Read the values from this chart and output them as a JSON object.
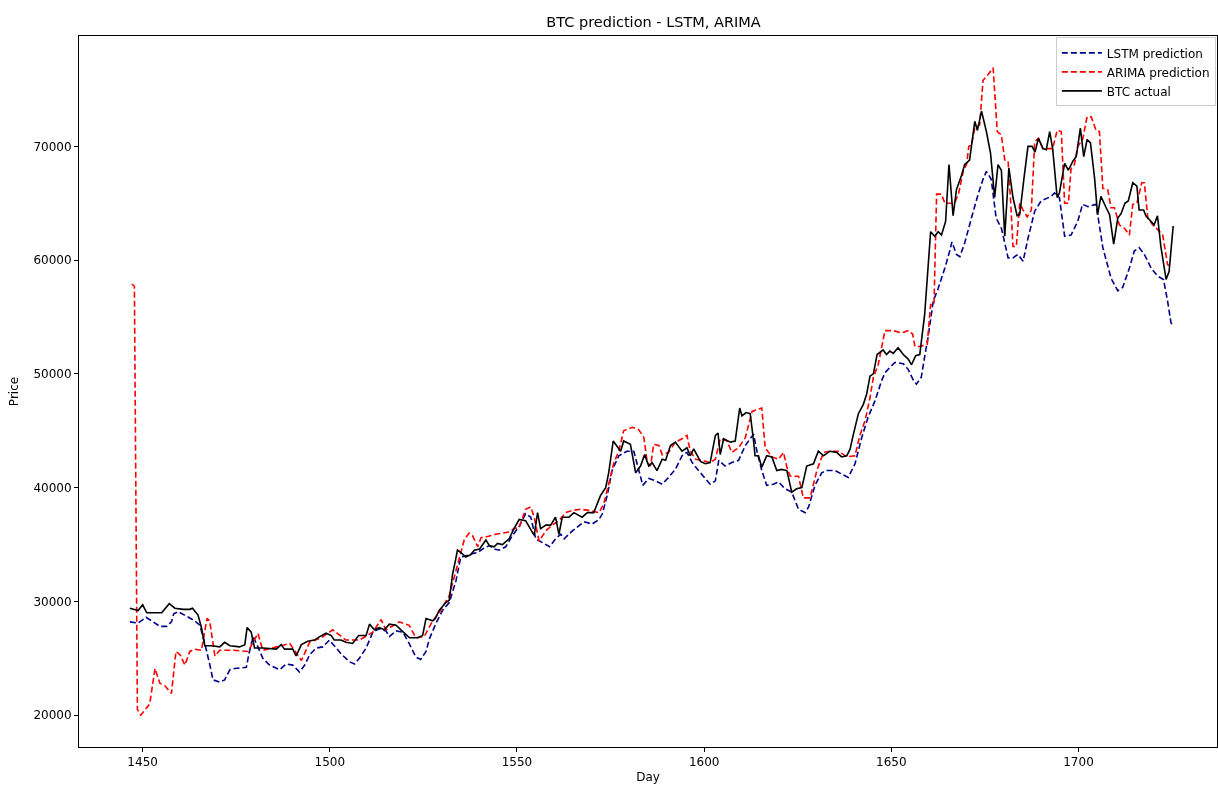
{
  "chart_data": {
    "type": "line",
    "title": "BTC prediction - LSTM, ARIMA",
    "xlabel": "Day",
    "ylabel": "Price",
    "xlim": [
      1433,
      1737
    ],
    "ylim": [
      17200,
      79700
    ],
    "xticks": [
      1450,
      1500,
      1550,
      1600,
      1650,
      1700
    ],
    "yticks": [
      20000,
      30000,
      40000,
      50000,
      60000,
      70000
    ],
    "legend": "top right",
    "series": [
      {
        "name": "LSTM prediction",
        "color": "#00008b",
        "line_style": "dashed",
        "x": [
          1446.6,
          1448.8,
          1450.9,
          1452.8,
          1454.6,
          1456.4,
          1457.7,
          1458.3,
          1459.5,
          1461.7,
          1463.9,
          1465.3,
          1466.6,
          1467.9,
          1468.8,
          1470.6,
          1471.9,
          1473.3,
          1474.6,
          1477.7,
          1478.4,
          1479.5,
          1480.4,
          1482.1,
          1483.9,
          1486.6,
          1488.4,
          1490.1,
          1491.9,
          1493.3,
          1494.6,
          1496.4,
          1498.1,
          1499.9,
          1501.2,
          1503.0,
          1505.2,
          1506.6,
          1507.9,
          1509.7,
          1511.5,
          1513.2,
          1515.0,
          1515.9,
          1517.7,
          1519.5,
          1521.2,
          1523.0,
          1524.3,
          1525.7,
          1526.6,
          1528.4,
          1530.1,
          1531.9,
          1533.7,
          1534.6,
          1535.0,
          1536.3,
          1538.1,
          1539.5,
          1540.8,
          1542.6,
          1544.0,
          1545.2,
          1547.0,
          1548.8,
          1550.6,
          1552.3,
          1553.7,
          1555.0,
          1557.2,
          1558.7,
          1560.3,
          1561.7,
          1562.6,
          1564.8,
          1567.9,
          1570.1,
          1571.9,
          1572.8,
          1574.1,
          1575.4,
          1577.2,
          1579.4,
          1581.2,
          1582.5,
          1583.6,
          1585.2,
          1587.0,
          1588.8,
          1590.5,
          1592.3,
          1594.1,
          1595.4,
          1596.8,
          1598.5,
          1600.3,
          1601.6,
          1603.0,
          1603.9,
          1605.6,
          1607.4,
          1609.2,
          1611.0,
          1612.3,
          1613.2,
          1614.1,
          1615.4,
          1616.7,
          1618.5,
          1619.9,
          1621.6,
          1623.4,
          1625.2,
          1627.0,
          1627.9,
          1629.6,
          1631.4,
          1632.7,
          1635.0,
          1636.7,
          1638.5,
          1640.3,
          1642.1,
          1643.8,
          1645.6,
          1647.4,
          1648.3,
          1650.9,
          1653.2,
          1654.5,
          1655.8,
          1656.7,
          1658.0,
          1659.0,
          1659.8,
          1661.2,
          1662.5,
          1664.3,
          1665.6,
          1666.2,
          1667.4,
          1668.3,
          1669.6,
          1671.4,
          1673.2,
          1674.5,
          1675.4,
          1676.7,
          1678.0,
          1679.4,
          1681.2,
          1682.5,
          1683.8,
          1685.2,
          1686.5,
          1688.3,
          1690.0,
          1692.7,
          1693.6,
          1694.9,
          1696.3,
          1698.0,
          1699.8,
          1701.1,
          1702.5,
          1704.7,
          1706.5,
          1708.7,
          1710.5,
          1711.8,
          1713.6,
          1714.9,
          1716.2,
          1717.6,
          1719.4,
          1721.1,
          1722.7,
          1723.8,
          1724.7,
          1725.3
        ],
        "values": [
          28200,
          28100,
          28600,
          28200,
          27800,
          27800,
          28200,
          28900,
          29100,
          28700,
          28300,
          27900,
          26300,
          24500,
          23100,
          22900,
          23100,
          24000,
          24100,
          24200,
          25400,
          26900,
          26300,
          25000,
          24400,
          24000,
          24500,
          24400,
          23800,
          24400,
          25300,
          25900,
          26000,
          26600,
          26100,
          25400,
          24700,
          24500,
          25000,
          25900,
          27300,
          27600,
          27400,
          26900,
          27400,
          27300,
          26300,
          25100,
          24900,
          25600,
          26700,
          28100,
          29200,
          29900,
          31800,
          33300,
          33900,
          34000,
          34200,
          34300,
          34600,
          34900,
          34600,
          34500,
          34800,
          35800,
          36600,
          37700,
          37400,
          35500,
          35100,
          34800,
          35500,
          35900,
          35500,
          36200,
          37000,
          36800,
          37200,
          37700,
          39300,
          41500,
          42800,
          43200,
          43200,
          41600,
          40200,
          40800,
          40600,
          40300,
          40900,
          41600,
          42800,
          43100,
          42200,
          41500,
          40800,
          40300,
          40600,
          42400,
          41900,
          42200,
          42400,
          43700,
          44300,
          44700,
          43200,
          41500,
          40200,
          40300,
          40500,
          39900,
          39600,
          38100,
          37800,
          38300,
          40200,
          41300,
          41500,
          41500,
          41200,
          40900,
          42100,
          44400,
          46200,
          47600,
          49400,
          50100,
          51000,
          50900,
          50400,
          49500,
          49100,
          49700,
          51700,
          53200,
          56400,
          57500,
          59300,
          60800,
          61600,
          60500,
          60300,
          61500,
          63700,
          65800,
          67100,
          67800,
          67100,
          63700,
          62800,
          60200,
          60200,
          60500,
          59900,
          61900,
          64300,
          65200,
          65600,
          65900,
          65500,
          62100,
          62200,
          63400,
          64900,
          64700,
          64900,
          61100,
          58400,
          57300,
          57600,
          59300,
          60800,
          61100,
          60500,
          59300,
          58600,
          58300,
          56400,
          54500,
          54200
        ]
      },
      {
        "name": "ARIMA prediction",
        "color": "#ff0000",
        "line_style": "dashed",
        "x": [
          1447.1,
          1447.8,
          1448.6,
          1449.5,
          1451.9,
          1453.3,
          1454.6,
          1455.9,
          1457.7,
          1458.9,
          1460.0,
          1461.3,
          1462.6,
          1463.9,
          1465.7,
          1467.2,
          1467.9,
          1469.3,
          1470.6,
          1474.2,
          1478.2,
          1480.8,
          1482.1,
          1485.7,
          1489.3,
          1492.4,
          1494.6,
          1497.7,
          1500.8,
          1504.3,
          1507.9,
          1511.5,
          1513.7,
          1515.0,
          1518.6,
          1521.2,
          1523.0,
          1525.2,
          1527.5,
          1529.2,
          1531.9,
          1533.7,
          1535.9,
          1537.2,
          1538.1,
          1539.5,
          1540.4,
          1542.1,
          1544.3,
          1547.9,
          1549.2,
          1550.6,
          1552.3,
          1553.7,
          1554.6,
          1555.9,
          1557.7,
          1559.4,
          1561.2,
          1563.0,
          1564.8,
          1567.0,
          1569.2,
          1571.9,
          1573.2,
          1574.5,
          1575.9,
          1577.2,
          1578.5,
          1580.8,
          1582.5,
          1583.9,
          1584.8,
          1585.7,
          1586.5,
          1587.9,
          1588.8,
          1590.5,
          1592.3,
          1594.1,
          1595.4,
          1596.3,
          1597.7,
          1599.4,
          1601.6,
          1603.0,
          1604.3,
          1606.1,
          1607.4,
          1609.2,
          1611.0,
          1612.8,
          1615.4,
          1616.3,
          1618.1,
          1619.9,
          1621.2,
          1622.1,
          1623.0,
          1625.2,
          1626.5,
          1628.3,
          1630.1,
          1631.9,
          1633.6,
          1635.9,
          1638.1,
          1640.3,
          1641.6,
          1643.0,
          1644.3,
          1645.2,
          1646.5,
          1647.4,
          1648.3,
          1650.5,
          1652.7,
          1654.5,
          1655.7,
          1656.3,
          1657.6,
          1659.6,
          1660.5,
          1661.4,
          1662.1,
          1663.4,
          1664.3,
          1666.9,
          1668.0,
          1669.2,
          1670.1,
          1670.7,
          1671.4,
          1672.3,
          1673.6,
          1674.5,
          1675.8,
          1677.2,
          1678.3,
          1679.4,
          1680.3,
          1681.2,
          1681.9,
          1682.5,
          1683.4,
          1684.3,
          1685.2,
          1686.3,
          1687.4,
          1688.3,
          1689.3,
          1690.5,
          1691.8,
          1693.1,
          1694.3,
          1695.4,
          1696.3,
          1697.3,
          1698.0,
          1698.9,
          1699.8,
          1701.1,
          1702.3,
          1703.4,
          1704.7,
          1705.6,
          1706.5,
          1707.8,
          1708.7,
          1709.6,
          1710.9,
          1712.3,
          1713.6,
          1714.5,
          1715.6,
          1716.9,
          1717.6,
          1718.5,
          1719.8,
          1721.1,
          1722.5,
          1723.8,
          1724.7
        ],
        "values": [
          57900,
          57700,
          20500,
          20000,
          21000,
          24100,
          22800,
          22600,
          21900,
          25600,
          25300,
          24400,
          25600,
          25800,
          25700,
          28500,
          28300,
          25200,
          25700,
          25700,
          25600,
          27200,
          25700,
          26000,
          26300,
          24800,
          26400,
          26800,
          27500,
          26600,
          26600,
          27300,
          28400,
          27500,
          28200,
          27900,
          26800,
          26900,
          28300,
          29000,
          30500,
          32700,
          35400,
          36000,
          35800,
          34800,
          35600,
          35700,
          35900,
          36100,
          36400,
          36500,
          38100,
          38300,
          37400,
          35300,
          36200,
          36700,
          37100,
          37800,
          38000,
          38100,
          38000,
          37800,
          38600,
          40300,
          42200,
          43200,
          45000,
          45300,
          45100,
          44400,
          42200,
          41900,
          43800,
          43700,
          42900,
          43100,
          44000,
          44300,
          44600,
          43200,
          42500,
          42400,
          42200,
          42500,
          44300,
          44100,
          43100,
          43500,
          44400,
          46700,
          47000,
          43500,
          42700,
          42500,
          43100,
          41800,
          41000,
          41000,
          39100,
          39100,
          41500,
          43100,
          43200,
          43200,
          42700,
          42800,
          44600,
          45900,
          47900,
          49700,
          50800,
          52300,
          53800,
          53800,
          53600,
          53800,
          53500,
          52400,
          52400,
          52600,
          56100,
          56100,
          65800,
          65800,
          65000,
          65000,
          65900,
          67800,
          68400,
          70000,
          70100,
          71600,
          71900,
          75800,
          76300,
          76900,
          71300,
          71000,
          68800,
          68700,
          65000,
          61200,
          61200,
          65000,
          64400,
          63800,
          64400,
          70400,
          70700,
          69800,
          69800,
          69800,
          71400,
          71300,
          65000,
          65000,
          68000,
          68400,
          70000,
          70600,
          72600,
          72600,
          71400,
          71300,
          66300,
          66200,
          64600,
          64600,
          63100,
          62800,
          62200,
          64900,
          65000,
          66800,
          66800,
          63700,
          63100,
          62700,
          62200,
          59600,
          59500
        ]
      },
      {
        "name": "BTC actual",
        "color": "#000000",
        "line_style": "solid",
        "x": [
          1446.6,
          1448.8,
          1450.0,
          1451.1,
          1455.1,
          1457.1,
          1458.6,
          1460.9,
          1462.6,
          1463.3,
          1464.8,
          1465.7,
          1466.6,
          1468.4,
          1470.6,
          1471.9,
          1473.3,
          1475.9,
          1477.3,
          1477.9,
          1479.0,
          1479.9,
          1482.1,
          1485.7,
          1487.0,
          1487.9,
          1490.1,
          1491.0,
          1492.4,
          1494.1,
          1495.9,
          1497.3,
          1499.0,
          1500.4,
          1501.2,
          1503.0,
          1504.3,
          1506.1,
          1507.7,
          1509.7,
          1510.6,
          1511.9,
          1513.2,
          1514.6,
          1515.9,
          1517.7,
          1519.0,
          1521.3,
          1523.5,
          1524.8,
          1525.7,
          1527.5,
          1528.2,
          1529.2,
          1531.0,
          1531.9,
          1532.8,
          1533.5,
          1534.1,
          1535.0,
          1536.3,
          1537.6,
          1538.6,
          1540.0,
          1541.7,
          1542.6,
          1543.9,
          1544.8,
          1546.1,
          1547.9,
          1549.2,
          1550.6,
          1552.3,
          1554.6,
          1555.5,
          1556.3,
          1557.7,
          1559.0,
          1560.3,
          1561.2,
          1562.1,
          1563.9,
          1565.2,
          1567.4,
          1568.8,
          1570.5,
          1572.3,
          1573.7,
          1574.5,
          1575.7,
          1577.7,
          1578.5,
          1580.3,
          1581.7,
          1583.0,
          1584.1,
          1585.2,
          1586.1,
          1587.4,
          1588.8,
          1589.7,
          1591.0,
          1592.3,
          1594.1,
          1595.4,
          1596.3,
          1597.2,
          1599.0,
          1600.3,
          1601.6,
          1603.0,
          1603.7,
          1604.3,
          1605.2,
          1607.0,
          1608.3,
          1609.5,
          1610.1,
          1611.2,
          1612.3,
          1613.2,
          1613.6,
          1614.5,
          1615.4,
          1616.7,
          1618.1,
          1619.4,
          1620.7,
          1622.1,
          1623.4,
          1624.7,
          1626.1,
          1627.4,
          1629.2,
          1630.5,
          1631.9,
          1633.6,
          1635.4,
          1636.7,
          1638.1,
          1639.0,
          1639.8,
          1641.2,
          1642.5,
          1643.4,
          1644.3,
          1645.2,
          1646.2,
          1647.8,
          1648.7,
          1649.6,
          1650.5,
          1651.8,
          1653.2,
          1654.5,
          1655.4,
          1656.5,
          1657.6,
          1658.9,
          1660.5,
          1661.6,
          1662.5,
          1663.4,
          1664.5,
          1665.4,
          1666.5,
          1667.4,
          1668.7,
          1669.6,
          1670.9,
          1672.3,
          1673.0,
          1674.1,
          1675.4,
          1676.5,
          1677.6,
          1678.5,
          1679.4,
          1680.3,
          1681.4,
          1682.5,
          1683.6,
          1684.3,
          1685.4,
          1686.5,
          1687.6,
          1688.4,
          1689.3,
          1690.5,
          1691.4,
          1692.3,
          1693.1,
          1694.3,
          1694.9,
          1696.3,
          1697.3,
          1698.5,
          1699.4,
          1700.5,
          1701.4,
          1702.3,
          1703.2,
          1704.3,
          1705.1,
          1706.0,
          1707.4,
          1708.3,
          1709.4,
          1710.5,
          1711.4,
          1712.4,
          1713.3,
          1714.5,
          1715.6,
          1716.2,
          1717.4,
          1718.0,
          1719.4,
          1720.2,
          1721.1,
          1722.0,
          1723.4,
          1724.2,
          1725.3
        ],
        "values": [
          29400,
          29200,
          29700,
          29000,
          29000,
          29800,
          29400,
          29300,
          29300,
          29400,
          28800,
          27700,
          26100,
          26100,
          26000,
          26400,
          26100,
          26000,
          26200,
          27700,
          27300,
          25900,
          25900,
          25800,
          26200,
          25800,
          25800,
          25200,
          26200,
          26500,
          26600,
          26900,
          27200,
          27000,
          26600,
          26600,
          26400,
          26300,
          27000,
          27000,
          28000,
          27500,
          27700,
          27500,
          28000,
          27900,
          27500,
          26800,
          26800,
          27000,
          28500,
          28300,
          28500,
          29200,
          29900,
          30100,
          32400,
          33500,
          34500,
          34300,
          33900,
          34100,
          34500,
          34600,
          35400,
          34900,
          34800,
          35100,
          35000,
          35500,
          36400,
          37200,
          37100,
          35800,
          37800,
          36400,
          36700,
          36700,
          37400,
          35900,
          37400,
          37400,
          37800,
          37400,
          37800,
          37800,
          39300,
          40000,
          41300,
          44100,
          43200,
          44100,
          43800,
          41300,
          41900,
          42900,
          41900,
          42200,
          41500,
          42500,
          42400,
          43700,
          44000,
          43200,
          43500,
          42800,
          43400,
          42300,
          42100,
          42200,
          44600,
          44800,
          42900,
          44300,
          44000,
          44100,
          47000,
          46300,
          46600,
          46500,
          44100,
          42800,
          42800,
          41800,
          42800,
          42700,
          41500,
          41600,
          41500,
          39600,
          39900,
          40000,
          41900,
          42100,
          43200,
          42800,
          43200,
          43100,
          42700,
          42800,
          43400,
          44600,
          46500,
          47300,
          48200,
          49800,
          50000,
          51700,
          52100,
          51700,
          52000,
          51800,
          52300,
          51700,
          51300,
          50800,
          51600,
          51700,
          55200,
          62500,
          62100,
          62500,
          62200,
          63400,
          68400,
          63900,
          66200,
          67400,
          68400,
          68800,
          72200,
          71400,
          73100,
          71300,
          69400,
          65500,
          68400,
          67900,
          62100,
          68100,
          65500,
          63900,
          64000,
          67100,
          70000,
          70000,
          69500,
          70700,
          69800,
          69700,
          71300,
          69800,
          65500,
          65900,
          68500,
          67900,
          68700,
          69100,
          71600,
          69100,
          70600,
          70300,
          67200,
          64000,
          65600,
          64600,
          64000,
          61400,
          63700,
          64100,
          65000,
          65200,
          66800,
          66500,
          64400,
          64400,
          63900,
          63400,
          63100,
          63900,
          61200,
          58300,
          59000,
          63000
        ]
      }
    ]
  }
}
